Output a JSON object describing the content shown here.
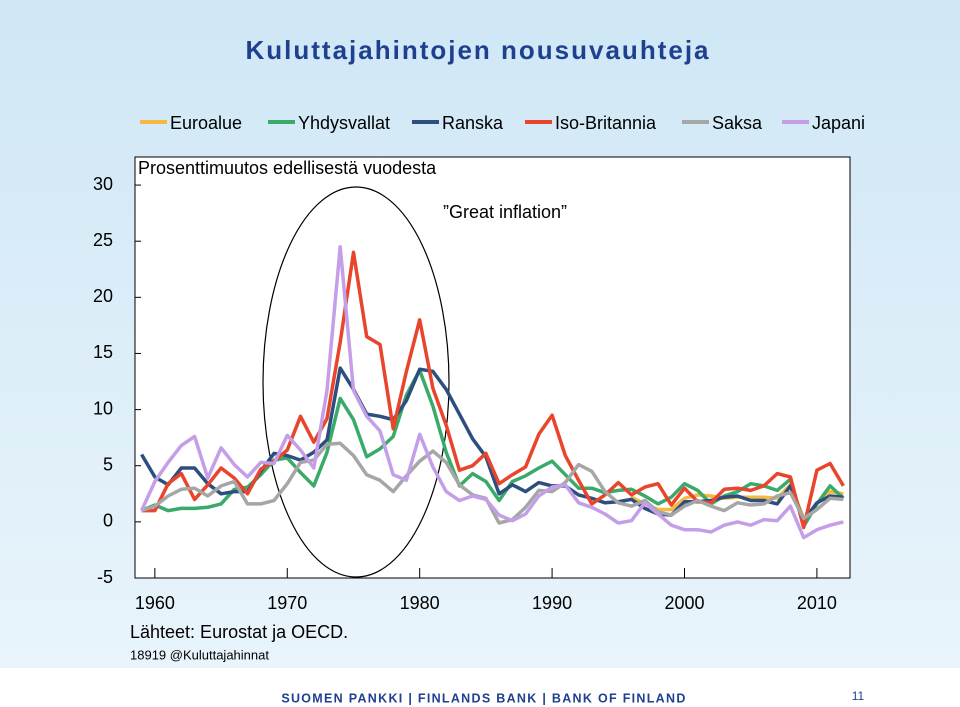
{
  "chart_data": {
    "type": "line",
    "title": "Kuluttajahintojen nousuvauhteja",
    "subtitle": "Prosenttimuutos edellisestä vuodesta",
    "annotation": "”Great inflation”",
    "source": "Lähteet: Eurostat ja OECD.",
    "code": "18919 @Kuluttajahinnat",
    "footer": "SUOMEN PANKKI | FINLANDS BANK | BANK OF FINLAND",
    "page_number": "11",
    "xlim": [
      1958.5,
      2012.5
    ],
    "xticks": [
      1960,
      1970,
      1980,
      1990,
      2000,
      2010
    ],
    "ylim": [
      -5,
      32.5
    ],
    "yticks": [
      -5,
      0,
      5,
      10,
      15,
      20,
      25,
      30
    ],
    "x": [
      1959,
      1960,
      1961,
      1962,
      1963,
      1964,
      1965,
      1966,
      1967,
      1968,
      1969,
      1970,
      1971,
      1972,
      1973,
      1974,
      1975,
      1976,
      1977,
      1978,
      1979,
      1980,
      1981,
      1982,
      1983,
      1984,
      1985,
      1986,
      1987,
      1988,
      1989,
      1990,
      1991,
      1992,
      1993,
      1994,
      1995,
      1996,
      1997,
      1998,
      1999,
      2000,
      2001,
      2002,
      2003,
      2004,
      2005,
      2006,
      2007,
      2008,
      2009,
      2010,
      2011,
      2012
    ],
    "series": [
      {
        "name": "Euroalue",
        "color": "#f5b942",
        "values": [
          null,
          null,
          null,
          null,
          null,
          null,
          null,
          null,
          null,
          null,
          null,
          null,
          null,
          null,
          null,
          null,
          null,
          null,
          null,
          null,
          null,
          null,
          null,
          null,
          null,
          null,
          null,
          null,
          null,
          null,
          null,
          null,
          null,
          null,
          null,
          null,
          null,
          2.2,
          1.6,
          1.1,
          1.1,
          2.1,
          2.4,
          2.3,
          2.1,
          2.2,
          2.2,
          2.2,
          2.1,
          3.3,
          0.3,
          1.6,
          2.7,
          2.5
        ]
      },
      {
        "name": "Yhdysvallat",
        "color": "#3aaa6a",
        "values": [
          1,
          1.5,
          1,
          1.2,
          1.2,
          1.3,
          1.6,
          2.9,
          3.1,
          4.2,
          5.5,
          5.7,
          4.4,
          3.2,
          6.2,
          11,
          9.1,
          5.8,
          6.5,
          7.6,
          11.3,
          13.5,
          10.3,
          6.2,
          3.2,
          4.3,
          3.6,
          1.9,
          3.6,
          4.1,
          4.8,
          5.4,
          4.2,
          3,
          3,
          2.6,
          2.8,
          2.9,
          2.3,
          1.6,
          2.2,
          3.4,
          2.8,
          1.6,
          2.3,
          2.7,
          3.4,
          3.2,
          2.8,
          3.8,
          -0.4,
          1.6,
          3.2,
          2.1
        ]
      },
      {
        "name": "Ranska",
        "color": "#2d4f7f",
        "values": [
          6,
          4,
          3.3,
          4.8,
          4.8,
          3.4,
          2.5,
          2.7,
          2.7,
          4.5,
          6.1,
          5.9,
          5.5,
          6.2,
          7.3,
          13.7,
          11.8,
          9.6,
          9.4,
          9.1,
          10.8,
          13.6,
          13.4,
          11.8,
          9.6,
          7.4,
          5.8,
          2.5,
          3.3,
          2.7,
          3.5,
          3.2,
          3.2,
          2.4,
          2.1,
          1.7,
          1.8,
          2,
          1.2,
          0.7,
          0.6,
          1.8,
          1.8,
          1.9,
          2.2,
          2.3,
          1.9,
          1.9,
          1.6,
          3.2,
          0.1,
          1.7,
          2.3,
          2.2
        ]
      },
      {
        "name": "Iso-Britannia",
        "color": "#e8452c",
        "values": [
          1,
          1,
          3.4,
          4.3,
          2,
          3.3,
          4.8,
          3.9,
          2.5,
          4.7,
          5.4,
          6.4,
          9.4,
          7.1,
          9.2,
          16,
          24,
          16.5,
          15.8,
          8.3,
          13.4,
          18,
          11.9,
          8.6,
          4.6,
          5,
          6.1,
          3.4,
          4.2,
          4.9,
          7.8,
          9.5,
          5.9,
          3.7,
          1.6,
          2.4,
          3.5,
          2.4,
          3.1,
          3.4,
          1.5,
          3,
          1.8,
          1.7,
          2.9,
          3,
          2.8,
          3.2,
          4.3,
          4,
          -0.5,
          4.6,
          5.2,
          3.2
        ]
      },
      {
        "name": "Saksa",
        "color": "#a6a6a6",
        "values": [
          1,
          1.4,
          2.3,
          2.9,
          3,
          2.3,
          3.2,
          3.6,
          1.6,
          1.6,
          1.9,
          3.4,
          5.3,
          5.5,
          6.9,
          7,
          5.9,
          4.2,
          3.7,
          2.7,
          4.1,
          5.4,
          6.3,
          5.3,
          3.3,
          2.4,
          2.1,
          -0.1,
          0.2,
          1.3,
          2.8,
          2.7,
          3.5,
          5.1,
          4.5,
          2.7,
          1.7,
          1.4,
          1.9,
          0.9,
          0.6,
          1.4,
          1.9,
          1.4,
          1,
          1.7,
          1.5,
          1.6,
          2.3,
          2.6,
          0.3,
          1.1,
          2.1,
          2
        ]
      },
      {
        "name": "Japani",
        "color": "#c59ee8",
        "values": [
          1,
          3.6,
          5.3,
          6.8,
          7.6,
          3.9,
          6.6,
          5.1,
          4,
          5.3,
          5.2,
          7.7,
          6.4,
          4.8,
          11.7,
          24.5,
          11.7,
          9.4,
          8.1,
          4.2,
          3.7,
          7.8,
          4.9,
          2.7,
          1.9,
          2.3,
          2,
          0.6,
          0.1,
          0.7,
          2.3,
          3.1,
          3.3,
          1.7,
          1.3,
          0.7,
          -0.1,
          0.1,
          1.7,
          0.7,
          -0.3,
          -0.7,
          -0.7,
          -0.9,
          -0.3,
          0,
          -0.3,
          0.2,
          0.1,
          1.4,
          -1.4,
          -0.7,
          -0.3,
          0
        ]
      }
    ]
  }
}
